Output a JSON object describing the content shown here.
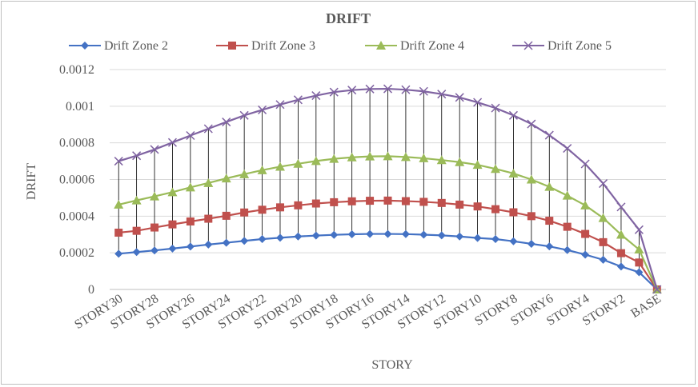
{
  "chart_data": {
    "type": "line",
    "title": "DRIFT",
    "xlabel": "STORY",
    "ylabel": "DRIFT",
    "ylim": [
      0,
      0.0012
    ],
    "y_ticks": [
      "0",
      "0.0002",
      "0.0004",
      "0.0006",
      "0.0008",
      "0.001",
      "0.0012"
    ],
    "y_tick_values": [
      0,
      0.0002,
      0.0004,
      0.0006,
      0.0008,
      0.001,
      0.0012
    ],
    "legend_position": "top",
    "high_low_lines": true,
    "categories": [
      "STORY30",
      "STORY29",
      "STORY28",
      "STORY27",
      "STORY26",
      "STORY25",
      "STORY24",
      "STORY23",
      "STORY22",
      "STORY21",
      "STORY20",
      "STORY19",
      "STORY18",
      "STORY17",
      "STORY16",
      "STORY15",
      "STORY14",
      "STORY13",
      "STORY12",
      "STORY11",
      "STORY10",
      "STORY9",
      "STORY8",
      "STORY7",
      "STORY6",
      "STORY5",
      "STORY4",
      "STORY3",
      "STORY2",
      "STORY1",
      "BASE"
    ],
    "tick_labels": [
      "STORY30",
      "STORY28",
      "STORY26",
      "STORY24",
      "STORY22",
      "STORY20",
      "STORY18",
      "STORY16",
      "STORY14",
      "STORY12",
      "STORY10",
      "STORY8",
      "STORY6",
      "STORY4",
      "STORY2",
      "BASE"
    ],
    "series": [
      {
        "name": "Drift Zone 2",
        "color": "#4472C4",
        "marker": "diamond",
        "values": [
          0.000195,
          0.000204,
          0.000213,
          0.000223,
          0.000234,
          0.000245,
          0.000255,
          0.000265,
          0.000275,
          0.000282,
          0.000289,
          0.000294,
          0.000298,
          0.000301,
          0.000303,
          0.000303,
          0.000302,
          0.000299,
          0.000295,
          0.000289,
          0.000281,
          0.000275,
          0.000263,
          0.000249,
          0.000235,
          0.000215,
          0.00019,
          0.000162,
          0.000125,
          9.4e-05,
          0.0
        ]
      },
      {
        "name": "Drift Zone 3",
        "color": "#C0504D",
        "marker": "square",
        "values": [
          0.00031,
          0.00032,
          0.000338,
          0.000355,
          0.000371,
          0.000386,
          0.000402,
          0.00042,
          0.000435,
          0.000448,
          0.000459,
          0.000469,
          0.000476,
          0.000481,
          0.000484,
          0.000485,
          0.000482,
          0.000478,
          0.000472,
          0.000463,
          0.000453,
          0.000438,
          0.000421,
          0.0004,
          0.000375,
          0.000342,
          0.000303,
          0.000258,
          0.000198,
          0.000147,
          0.0
        ]
      },
      {
        "name": "Drift Zone 4",
        "color": "#9BBB59",
        "marker": "triangle",
        "values": [
          0.000463,
          0.000486,
          0.000508,
          0.000531,
          0.000557,
          0.000581,
          0.000606,
          0.000629,
          0.000651,
          0.00067,
          0.000686,
          0.000701,
          0.000713,
          0.000721,
          0.000726,
          0.000727,
          0.000723,
          0.000716,
          0.000706,
          0.000695,
          0.00068,
          0.000658,
          0.000633,
          0.0006,
          0.00056,
          0.000512,
          0.000459,
          0.00039,
          0.000299,
          0.000218,
          0.0
        ]
      },
      {
        "name": "Drift Zone 5",
        "color": "#8064A2",
        "marker": "x",
        "values": [
          0.0007,
          0.00073,
          0.000764,
          0.000802,
          0.00084,
          0.000877,
          0.000914,
          0.00095,
          0.00098,
          0.001009,
          0.001035,
          0.001058,
          0.001077,
          0.001088,
          0.001094,
          0.001095,
          0.00109,
          0.001081,
          0.001066,
          0.001048,
          0.001021,
          0.00099,
          0.00095,
          0.000903,
          0.000842,
          0.00077,
          0.000685,
          0.000578,
          0.00045,
          0.000326,
          0.0
        ]
      }
    ]
  }
}
